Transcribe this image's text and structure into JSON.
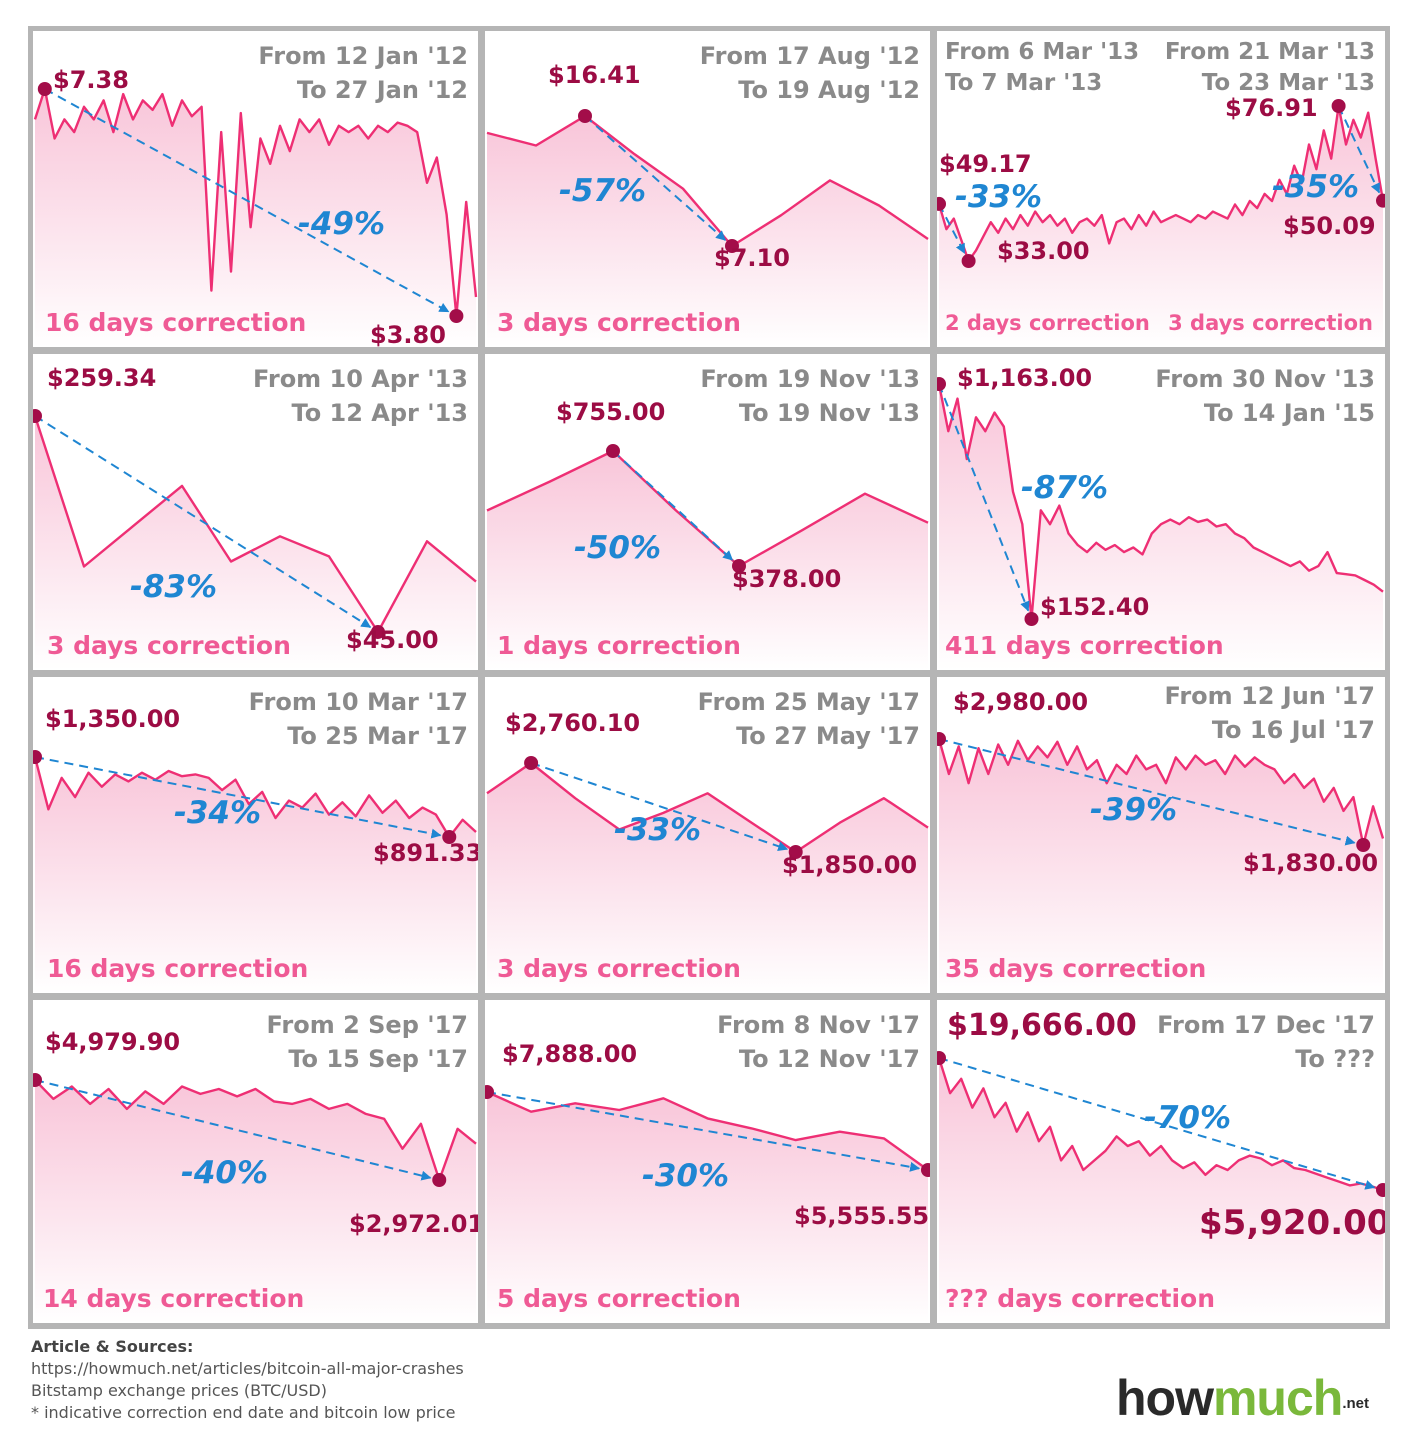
{
  "colors": {
    "line": "#ee2f74",
    "fill_top": "#f8c2d7",
    "dot": "#a30d49",
    "arrow": "#1f86d2",
    "price_text": "#9c0c44",
    "date_text": "#8a8a8a",
    "duration_text": "#ef5a95"
  },
  "chart_data": [
    {
      "type": "line",
      "title": "From 12 Jan '12 To 27 Jan '12",
      "from": "From 12 Jan '12",
      "to": "To 27 Jan '12",
      "high_label": "$7.38",
      "low_label": "$3.80",
      "high": 7.38,
      "low": 3.8,
      "change_label": "-49%",
      "duration_label": "16 days correction",
      "series": [
        6.9,
        7.38,
        6.6,
        6.9,
        6.7,
        7.1,
        6.9,
        7.2,
        6.7,
        7.3,
        6.9,
        7.2,
        7.05,
        7.3,
        6.8,
        7.2,
        6.95,
        7.1,
        4.2,
        6.7,
        4.5,
        7.0,
        5.2,
        6.6,
        6.2,
        6.8,
        6.4,
        6.9,
        6.7,
        6.9,
        6.5,
        6.8,
        6.7,
        6.8,
        6.6,
        6.8,
        6.7,
        6.85,
        6.8,
        6.7,
        5.9,
        6.3,
        5.4,
        3.8,
        5.6,
        4.1
      ]
    },
    {
      "type": "line",
      "title": "From 17 Aug '12 To 19 Aug '12",
      "from": "From 17 Aug '12",
      "to": "To 19 Aug '12",
      "high_label": "$16.41",
      "low_label": "$7.10",
      "high": 16.41,
      "low": 7.1,
      "change_label": "-57%",
      "duration_label": "3 days correction",
      "series": [
        15.2,
        14.3,
        16.41,
        13.7,
        11.2,
        7.1,
        9.3,
        11.8,
        10.0,
        7.6
      ]
    },
    {
      "type": "line",
      "title": "From 6 Mar '13 To 7 Mar '13 / From 21 Mar '13 To 23 Mar '13",
      "from": "From 6 Mar '13",
      "to": "To 7 Mar '13",
      "from2": "From 21 Mar '13",
      "to2": "To 23 Mar '13",
      "high_label": "$49.17",
      "low_label": "$33.00",
      "change_label": "-33%",
      "duration_label": "2 days correction",
      "high2_label": "$76.91",
      "low2_label": "$50.09",
      "change2_label": "-35%",
      "duration2_label": "3 days correction",
      "high": 49.17,
      "low": 33.0,
      "high2": 76.91,
      "low2": 50.09,
      "series": [
        49.17,
        42,
        45,
        39,
        33,
        36,
        40,
        44,
        41,
        45,
        42,
        46,
        43,
        47,
        44,
        46,
        43,
        45,
        41,
        44,
        45,
        43,
        46,
        38,
        44,
        45,
        42,
        46,
        43,
        47,
        44,
        45,
        46,
        45,
        44,
        46,
        45,
        47,
        46,
        45,
        49,
        46,
        50,
        48,
        52,
        50,
        56,
        52,
        60,
        55,
        66,
        59,
        70,
        62,
        76.91,
        66,
        73,
        68,
        75,
        62,
        50.09
      ]
    },
    {
      "type": "line",
      "title": "From 10 Apr '13 To 12 Apr '13",
      "from": "From 10 Apr '13",
      "to": "To 12 Apr '13",
      "high_label": "$259.34",
      "low_label": "$45.00",
      "high": 259.34,
      "low": 45.0,
      "change_label": "-83%",
      "duration_label": "3 days correction",
      "series": [
        259.34,
        110,
        150,
        190,
        115,
        140,
        120,
        45,
        135,
        95
      ]
    },
    {
      "type": "line",
      "title": "From 19 Nov '13 To 19 Nov '13",
      "from": "From 19 Nov '13",
      "to": "To 19 Nov '13",
      "high_label": "$755.00",
      "low_label": "$378.00",
      "high": 755.0,
      "low": 378.0,
      "change_label": "-50%",
      "duration_label": "1 days correction",
      "series": [
        560,
        655,
        755.0,
        560,
        378.0,
        495,
        615,
        520
      ]
    },
    {
      "type": "line",
      "title": "From 30 Nov '13 To 14 Jan '15",
      "from": "From 30 Nov '13",
      "to": "To 14 Jan '15",
      "high_label": "$1,163.00",
      "low_label": "$152.40",
      "high": 1163.0,
      "low": 152.4,
      "change_label": "-87%",
      "duration_label": "411 days correction",
      "series": [
        1163.0,
        960,
        1100,
        840,
        1020,
        960,
        1040,
        980,
        700,
        560,
        152.4,
        620,
        560,
        640,
        520,
        470,
        440,
        480,
        450,
        470,
        440,
        460,
        430,
        520,
        560,
        580,
        560,
        590,
        570,
        580,
        550,
        560,
        520,
        500,
        460,
        440,
        420,
        400,
        380,
        400,
        360,
        380,
        440,
        350,
        345,
        340,
        320,
        300,
        270
      ]
    },
    {
      "type": "line",
      "title": "From 10 Mar '17 To 25 Mar '17",
      "from": "From 10 Mar '17",
      "to": "To 25 Mar '17",
      "high_label": "$1,350.00",
      "low_label": "$891.33",
      "high": 1350.0,
      "low": 891.33,
      "change_label": "-34%",
      "duration_label": "16 days correction",
      "series": [
        1350.0,
        1050,
        1230,
        1120,
        1260,
        1180,
        1250,
        1210,
        1260,
        1220,
        1270,
        1240,
        1250,
        1230,
        1160,
        1220,
        1080,
        1150,
        1000,
        1100,
        1060,
        1140,
        1020,
        1090,
        1010,
        1130,
        1030,
        1100,
        1000,
        1060,
        1020,
        891.33,
        990,
        920
      ]
    },
    {
      "type": "line",
      "title": "From 25 May '17 To 27 May '17",
      "from": "From 25 May '17",
      "to": "To 27 May '17",
      "high_label": "$2,760.10",
      "low_label": "$1,850.00",
      "high": 2760.1,
      "low": 1850.0,
      "change_label": "-33%",
      "duration_label": "3 days correction",
      "series": [
        2450,
        2760.1,
        2400,
        2080,
        2250,
        2450,
        2150,
        1850.0,
        2150,
        2400,
        2100
      ]
    },
    {
      "type": "line",
      "title": "From 12 Jun '17 To 16 Jul '17",
      "from": "From 12 Jun '17",
      "to": "To 16 Jul '17",
      "high_label": "$2,980.00",
      "low_label": "$1,830.00",
      "high": 2980.0,
      "low": 1830.0,
      "change_label": "-39%",
      "duration_label": "35 days correction",
      "series": [
        2980.0,
        2600,
        2900,
        2500,
        2880,
        2600,
        2920,
        2700,
        2960,
        2750,
        2900,
        2780,
        2950,
        2700,
        2900,
        2650,
        2750,
        2500,
        2700,
        2600,
        2800,
        2650,
        2700,
        2500,
        2780,
        2650,
        2800,
        2700,
        2750,
        2600,
        2800,
        2680,
        2780,
        2700,
        2650,
        2500,
        2600,
        2450,
        2550,
        2300,
        2450,
        2200,
        2350,
        1830.0,
        2250,
        1900
      ]
    },
    {
      "type": "line",
      "title": "From 2 Sep '17 To 15 Sep '17",
      "from": "From 2 Sep '17",
      "to": "To 15 Sep '17",
      "high_label": "$4,979.90",
      "low_label": "$2,972.01",
      "high": 4979.9,
      "low": 2972.01,
      "change_label": "-40%",
      "duration_label": "14 days correction",
      "series": [
        4979.9,
        4600,
        4850,
        4500,
        4800,
        4400,
        4750,
        4500,
        4850,
        4700,
        4800,
        4650,
        4800,
        4550,
        4500,
        4600,
        4400,
        4500,
        4300,
        4200,
        3600,
        4100,
        2972.01,
        4000,
        3700
      ]
    },
    {
      "type": "line",
      "title": "From 8 Nov '17 To 12 Nov '17",
      "from": "From 8 Nov '17",
      "to": "To 12 Nov '17",
      "high_label": "$7,888.00",
      "low_label": "$5,555.55",
      "high": 7888.0,
      "low": 5555.55,
      "change_label": "-30%",
      "duration_label": "5 days correction",
      "series": [
        7888.0,
        7300,
        7550,
        7350,
        7700,
        7100,
        6800,
        6450,
        6700,
        6500,
        5555.55
      ]
    },
    {
      "type": "line",
      "title": "From 17 Dec '17 To ???",
      "from": "From 17 Dec '17",
      "to": "To ???",
      "high_label": "$19,666.00",
      "low_label": "$5,920.00",
      "high": 19666.0,
      "low": 5920.0,
      "change_label": "-70%",
      "duration_label": "??? days correction",
      "series": [
        19666.0,
        16000,
        17500,
        14500,
        16500,
        13500,
        15000,
        12000,
        14000,
        11000,
        12500,
        9000,
        10500,
        8000,
        9000,
        10000,
        11500,
        10500,
        11000,
        9500,
        10500,
        9000,
        8200,
        8800,
        7500,
        8500,
        8000,
        9000,
        9500,
        9200,
        8500,
        9000,
        8200,
        8000,
        7600,
        7200,
        6800,
        6400,
        6600,
        6300,
        5920.0
      ]
    }
  ],
  "sources": {
    "header": "Article & Sources:",
    "url": "https://howmuch.net/articles/bitcoin-all-major-crashes",
    "exchange": "Bitstamp exchange prices (BTC/USD)",
    "note": "* indicative correction end date and bitcoin low price"
  },
  "logo": {
    "how": "how",
    "much": "much",
    "net": ".net"
  }
}
